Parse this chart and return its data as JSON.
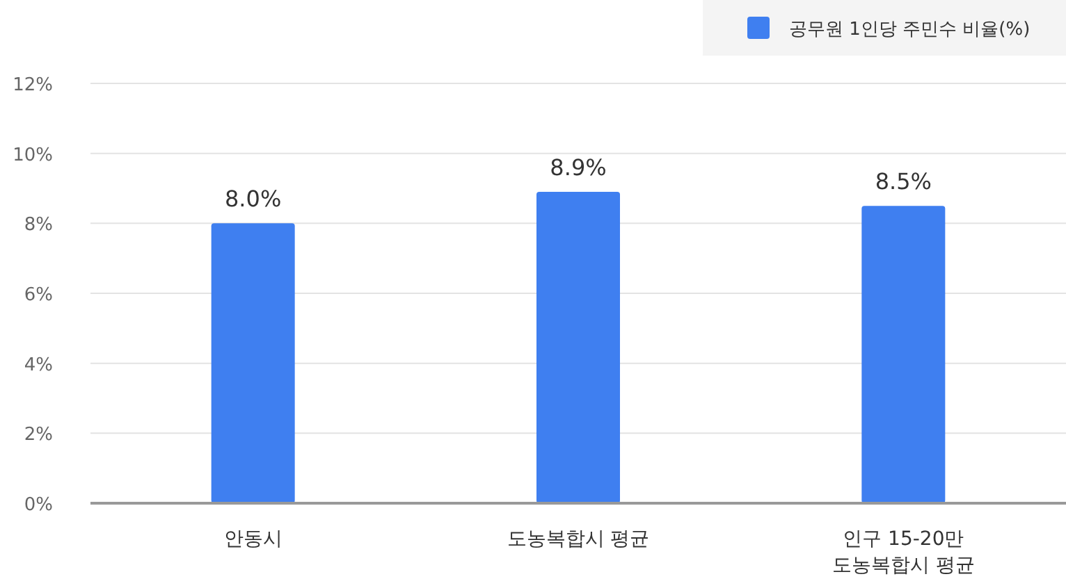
{
  "chart_data": {
    "type": "bar",
    "categories": [
      "안동시",
      "도농복합시 평균",
      "인구 15-20만\n도농복합시 평균"
    ],
    "series": [
      {
        "name": "공무원 1인당 주민수 비율(%)",
        "color": "#3f7ff0",
        "values": [
          8.0,
          8.9,
          8.5
        ]
      }
    ],
    "ylim": [
      0,
      12
    ],
    "yticks": [
      {
        "value": 0,
        "label": "0%"
      },
      {
        "value": 2,
        "label": "2%"
      },
      {
        "value": 4,
        "label": "4%"
      },
      {
        "value": 6,
        "label": "6%"
      },
      {
        "value": 8,
        "label": "8%"
      },
      {
        "value": 10,
        "label": "10%"
      },
      {
        "value": 12,
        "label": "12%"
      }
    ],
    "value_labels": [
      "8.0%",
      "8.9%",
      "8.5%"
    ],
    "grid": "y",
    "legend": "top right"
  }
}
